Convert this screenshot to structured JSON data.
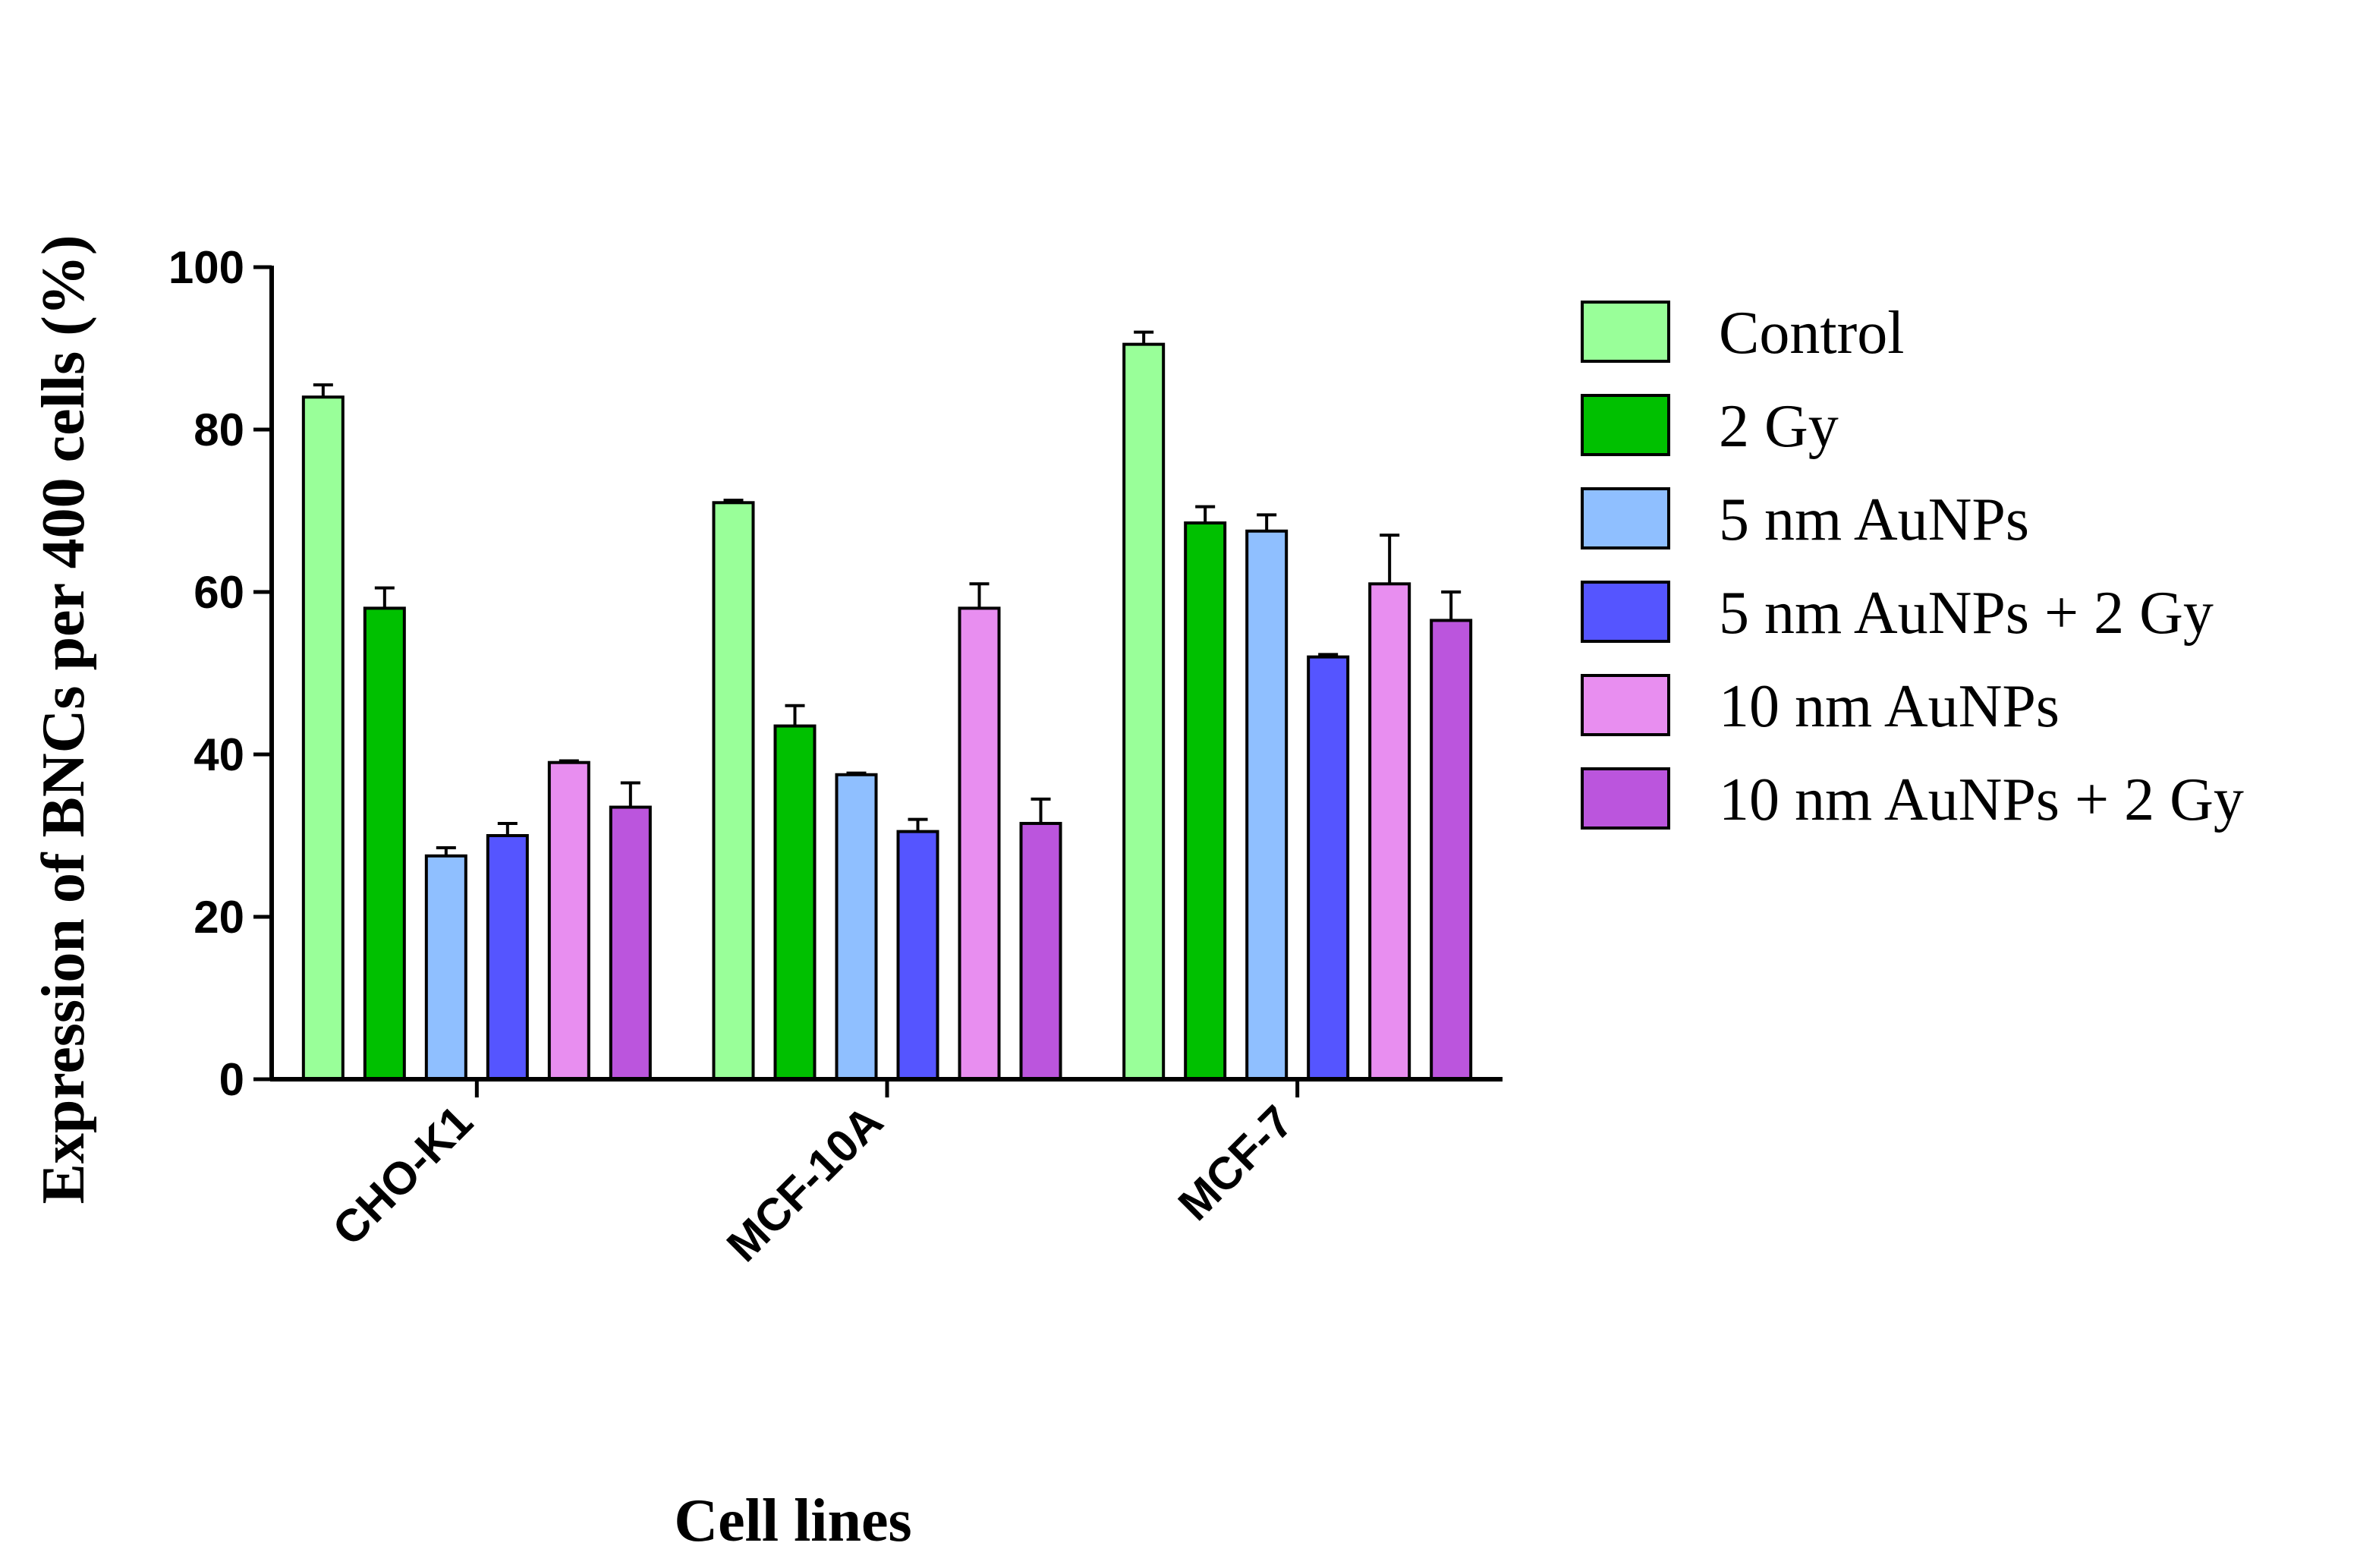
{
  "chart_data": {
    "type": "bar",
    "title": "",
    "xlabel": "Cell lines",
    "ylabel": "Expression of BNCs per 400 cells (%)",
    "ylim": [
      0,
      100
    ],
    "yticks": [
      0,
      20,
      40,
      60,
      80,
      100
    ],
    "categories": [
      "CHO-K1",
      "MCF-10A",
      "MCF-7"
    ],
    "legend_position": "right",
    "series": [
      {
        "name": "Control",
        "color": "#99ff99",
        "values": [
          84,
          71,
          90.5
        ],
        "errors": [
          1.5,
          0.3,
          1.5
        ]
      },
      {
        "name": "2 Gy",
        "color": "#00c000",
        "values": [
          58,
          43.5,
          68.5
        ],
        "errors": [
          2.5,
          2.5,
          2
        ]
      },
      {
        "name": "5 nm AuNPs",
        "color": "#8fbfff",
        "values": [
          27.5,
          37.5,
          67.5
        ],
        "errors": [
          1,
          0.2,
          2
        ]
      },
      {
        "name": "5 nm AuNPs + 2 Gy",
        "color": "#5555ff",
        "values": [
          30,
          30.5,
          52
        ],
        "errors": [
          1.5,
          1.5,
          0.3
        ]
      },
      {
        "name": "10 nm AuNPs",
        "color": "#e88ef0",
        "values": [
          39,
          58,
          61
        ],
        "errors": [
          0.2,
          3,
          6
        ]
      },
      {
        "name": "10 nm AuNPs + 2 Gy",
        "color": "#bb55dd",
        "values": [
          33.5,
          31.5,
          56.5
        ],
        "errors": [
          3,
          3,
          3.5
        ]
      }
    ]
  }
}
